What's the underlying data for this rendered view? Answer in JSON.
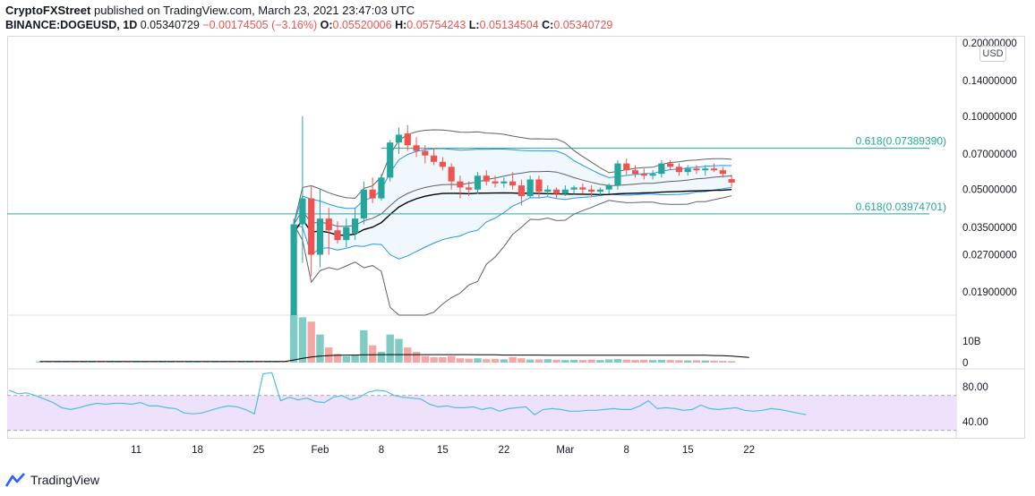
{
  "header": {
    "publisher": "CryptoFXStreet",
    "published_text": "published on TradingView.com, March 23, 2021 23:47:03 UTC",
    "symbol": "BINANCE:DOGEUSD, 1D",
    "last": "0.05340729",
    "change": "−0.00174505 (−3.16%)",
    "o_label": "O:",
    "o": "0.05520006",
    "h_label": "H:",
    "h": "0.05754243",
    "l_label": "L:",
    "l": "0.05134504",
    "c_label": "C:",
    "c": "0.05340729"
  },
  "currency_badge": "USD",
  "logo_text": "TradingView",
  "colors": {
    "up": "#26a69a",
    "down": "#ef5350",
    "bb_outer": "#5d6068",
    "bb_inner": "#2196f3",
    "ma_long": "#000000",
    "rsi_line": "#4dc0e0",
    "rsi_band": "#ede1fb",
    "fib": "#26a69a"
  },
  "chart_data": {
    "type": "candlestick",
    "symbol": "BINANCE:DOGEUSD",
    "interval": "1D",
    "x_tick_labels": [
      "11",
      "18",
      "25",
      "Feb",
      "8",
      "15",
      "22",
      "Mar",
      "8",
      "15",
      "22"
    ],
    "x_tick_indices": [
      11,
      18,
      25,
      32,
      39,
      46,
      53,
      60,
      67,
      74,
      81
    ],
    "y_axis": {
      "scale": "log",
      "ticks": [
        "0.20000000",
        "0.14000000",
        "0.10000000",
        "0.07000000",
        "0.05000000",
        "0.03500000",
        "0.02700000",
        "0.01900000"
      ],
      "tick_values": [
        0.2,
        0.14,
        0.1,
        0.07,
        0.05,
        0.035,
        0.027,
        0.019
      ]
    },
    "fib_levels": [
      {
        "label": "0.618(0.07389390)",
        "value": 0.0738939
      },
      {
        "label": "0.618(0.03974701)",
        "value": 0.03974701
      }
    ],
    "candles_start_index": 29,
    "candles": [
      [
        0.009,
        0.038,
        0.0085,
        0.036
      ],
      [
        0.036,
        0.1,
        0.025,
        0.046
      ],
      [
        0.046,
        0.052,
        0.022,
        0.027
      ],
      [
        0.027,
        0.05,
        0.024,
        0.038
      ],
      [
        0.038,
        0.042,
        0.027,
        0.034
      ],
      [
        0.034,
        0.037,
        0.03,
        0.031
      ],
      [
        0.031,
        0.038,
        0.029,
        0.035
      ],
      [
        0.033,
        0.042,
        0.031,
        0.038
      ],
      [
        0.038,
        0.054,
        0.036,
        0.05
      ],
      [
        0.05,
        0.056,
        0.044,
        0.046
      ],
      [
        0.046,
        0.058,
        0.045,
        0.056
      ],
      [
        0.056,
        0.08,
        0.054,
        0.078
      ],
      [
        0.078,
        0.09,
        0.07,
        0.084
      ],
      [
        0.085,
        0.092,
        0.072,
        0.076
      ],
      [
        0.076,
        0.082,
        0.068,
        0.072
      ],
      [
        0.072,
        0.076,
        0.064,
        0.069
      ],
      [
        0.069,
        0.074,
        0.063,
        0.065
      ],
      [
        0.065,
        0.068,
        0.06,
        0.062
      ],
      [
        0.062,
        0.064,
        0.05,
        0.054
      ],
      [
        0.054,
        0.057,
        0.046,
        0.051
      ],
      [
        0.051,
        0.054,
        0.047,
        0.05
      ],
      [
        0.05,
        0.059,
        0.048,
        0.057
      ],
      [
        0.057,
        0.06,
        0.052,
        0.054
      ],
      [
        0.054,
        0.057,
        0.051,
        0.053
      ],
      [
        0.053,
        0.056,
        0.051,
        0.054
      ],
      [
        0.054,
        0.059,
        0.05,
        0.052
      ],
      [
        0.052,
        0.055,
        0.043,
        0.047
      ],
      [
        0.047,
        0.057,
        0.046,
        0.055
      ],
      [
        0.055,
        0.057,
        0.046,
        0.049
      ],
      [
        0.049,
        0.052,
        0.047,
        0.05
      ],
      [
        0.05,
        0.051,
        0.046,
        0.048
      ],
      [
        0.048,
        0.052,
        0.047,
        0.05
      ],
      [
        0.05,
        0.052,
        0.048,
        0.051
      ],
      [
        0.051,
        0.053,
        0.048,
        0.05
      ],
      [
        0.05,
        0.052,
        0.047,
        0.049
      ],
      [
        0.049,
        0.051,
        0.047,
        0.05
      ],
      [
        0.05,
        0.053,
        0.048,
        0.052
      ],
      [
        0.052,
        0.066,
        0.05,
        0.064
      ],
      [
        0.064,
        0.067,
        0.057,
        0.06
      ],
      [
        0.06,
        0.063,
        0.056,
        0.058
      ],
      [
        0.058,
        0.061,
        0.055,
        0.057
      ],
      [
        0.057,
        0.06,
        0.055,
        0.058
      ],
      [
        0.058,
        0.066,
        0.056,
        0.064
      ],
      [
        0.064,
        0.066,
        0.06,
        0.062
      ],
      [
        0.062,
        0.064,
        0.057,
        0.059
      ],
      [
        0.059,
        0.063,
        0.057,
        0.061
      ],
      [
        0.061,
        0.063,
        0.058,
        0.06
      ],
      [
        0.06,
        0.063,
        0.057,
        0.061
      ],
      [
        0.061,
        0.064,
        0.059,
        0.06
      ],
      [
        0.06,
        0.062,
        0.056,
        0.058
      ],
      [
        0.05520006,
        0.05754243,
        0.05134504,
        0.05340729
      ]
    ],
    "volume_axis_ticks": [
      "10B",
      "0"
    ],
    "volume_axis_values": [
      10,
      0
    ],
    "volume_unit": "B",
    "volume_bars": [
      {
        "start": 0,
        "values": [
          0.6,
          0.55,
          0.5,
          0.6,
          0.5,
          0.45,
          0.5,
          0.55,
          0.5,
          0.45,
          0.5,
          0.55,
          0.5,
          0.45,
          0.7,
          0.55,
          0.5,
          0.45,
          0.5,
          0.45,
          0.4,
          0.45,
          0.5,
          0.45,
          0.5,
          0.45,
          0.4,
          0.45,
          0.5
        ]
      },
      {
        "start": 29,
        "values": [
          22,
          21,
          19,
          13,
          7,
          4,
          3,
          3.5,
          15,
          8,
          5,
          13,
          11,
          7,
          5,
          3,
          2.5,
          2.5,
          3,
          2,
          1.8,
          2,
          1.6,
          1.7,
          1.5,
          2.5,
          2,
          1.4,
          1.5,
          1.6,
          1.3,
          1.2,
          1.3,
          1.2,
          1.4,
          1.2,
          1.5,
          1.7,
          1.4,
          1.2,
          1.3,
          1.2,
          1.3,
          1.2,
          1.1,
          1.0,
          1.1,
          1.0,
          0.9,
          0.8,
          0.7
        ]
      }
    ],
    "volume_ma": [
      0.5,
      0.5,
      0.5,
      0.5,
      0.5,
      0.5,
      0.5,
      0.5,
      0.5,
      0.5,
      0.5,
      0.5,
      0.5,
      0.5,
      0.5,
      0.5,
      0.5,
      0.5,
      0.5,
      0.5,
      0.5,
      0.5,
      0.5,
      0.5,
      0.5,
      0.5,
      0.5,
      0.5,
      0.5,
      1.2,
      2.0,
      2.6,
      3.0,
      3.3,
      3.4,
      3.5,
      3.5,
      3.6,
      3.6,
      3.7,
      3.7,
      3.7,
      3.7,
      3.7,
      3.7,
      3.7,
      3.7,
      3.7,
      3.7,
      3.7,
      3.6,
      3.6,
      3.6,
      3.5,
      3.5,
      3.5,
      3.5,
      3.5,
      3.4,
      3.4,
      3.4,
      3.4,
      3.4,
      3.4,
      3.4,
      3.4,
      3.4,
      3.4,
      3.4,
      3.4,
      3.4,
      3.4,
      3.4,
      3.4,
      3.4,
      3.4,
      3.4,
      3.3,
      3.2,
      3.0,
      2.7,
      2.4
    ],
    "rsi": {
      "ticks": [
        "80.00",
        "40.00"
      ],
      "tick_values": [
        80,
        40
      ],
      "band": [
        70,
        30
      ],
      "start": 0,
      "values": [
        76,
        72,
        73,
        70,
        66,
        62,
        56,
        54,
        56,
        59,
        61,
        60,
        61,
        61,
        60,
        62,
        58,
        58,
        56,
        55,
        50,
        49,
        50,
        53,
        56,
        58,
        57,
        54,
        49,
        95,
        96,
        64,
        68,
        65,
        67,
        63,
        62,
        68,
        70,
        65,
        68,
        74,
        76,
        75,
        70,
        68,
        67,
        66,
        60,
        57,
        58,
        56,
        56,
        57,
        54,
        56,
        52,
        55,
        56,
        57,
        48,
        54,
        55,
        54,
        52,
        52,
        53,
        53,
        54,
        55,
        54,
        54,
        58,
        64,
        55,
        56,
        55,
        53,
        54,
        59,
        55,
        54,
        55,
        56,
        53,
        52,
        53,
        55,
        54,
        52,
        50,
        48
      ]
    }
  }
}
